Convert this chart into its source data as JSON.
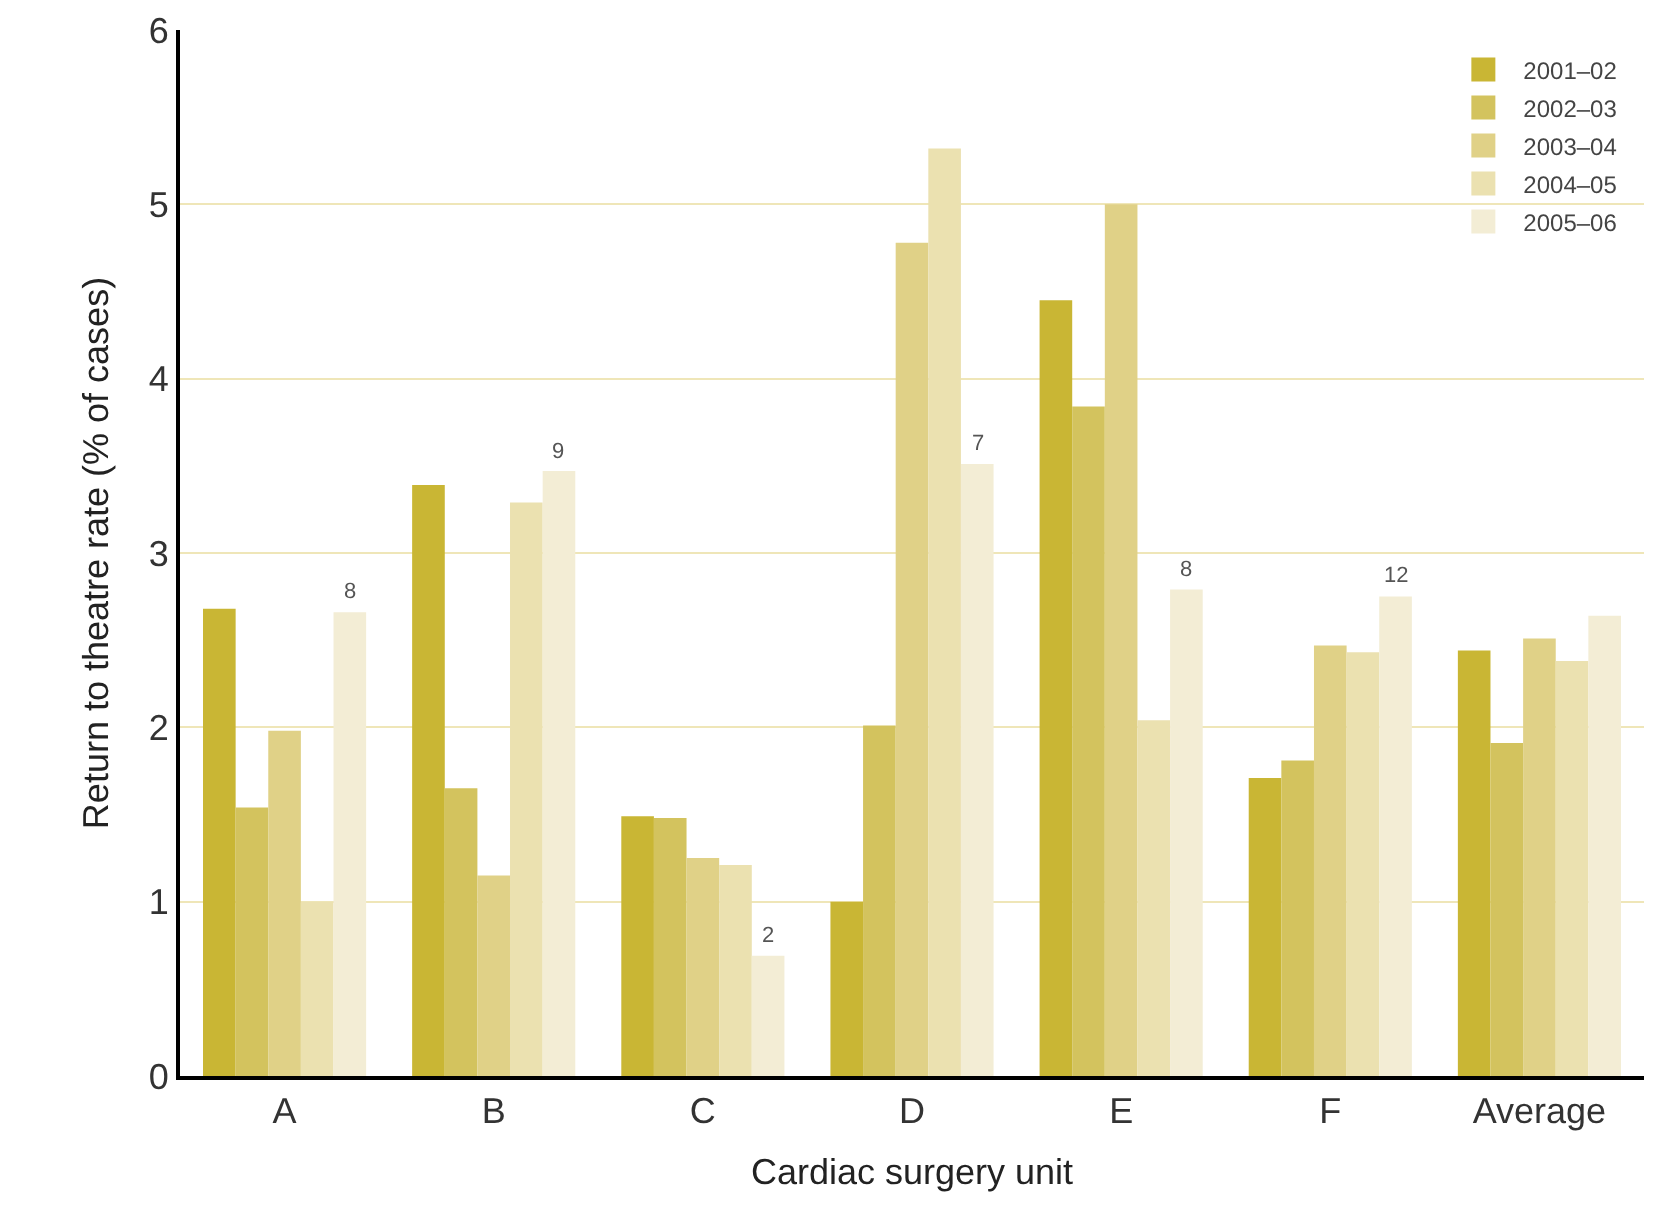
{
  "chart_data": {
    "type": "bar",
    "xlabel": "Cardiac surgery unit",
    "ylabel": "Return to theatre rate (% of cases)",
    "categories": [
      "A",
      "B",
      "C",
      "D",
      "E",
      "F",
      "Average"
    ],
    "series": [
      {
        "name": "2001–02",
        "color": "#c9b634",
        "values": [
          2.68,
          3.39,
          1.49,
          1.0,
          4.45,
          1.71,
          2.44
        ]
      },
      {
        "name": "2002–03",
        "color": "#d3c35e",
        "values": [
          1.54,
          1.65,
          1.48,
          2.01,
          3.84,
          1.81,
          1.91
        ]
      },
      {
        "name": "2003–04",
        "color": "#e0d187",
        "values": [
          1.98,
          1.15,
          1.25,
          4.78,
          5.0,
          2.47,
          2.51
        ]
      },
      {
        "name": "2004–05",
        "color": "#ebe1b0",
        "values": [
          1.0,
          3.29,
          1.21,
          5.32,
          2.04,
          2.43,
          2.38
        ]
      },
      {
        "name": "2005–06",
        "color": "#f3edd5",
        "values": [
          2.66,
          3.47,
          0.69,
          3.51,
          2.79,
          2.75,
          2.64
        ]
      }
    ],
    "annotations": [
      "8",
      "9",
      "2",
      "7",
      "8",
      "12"
    ],
    "ylim": [
      0,
      6
    ],
    "yticks": [
      0,
      1,
      2,
      3,
      4,
      5,
      6
    ],
    "grid": "y",
    "legend": "top right"
  }
}
